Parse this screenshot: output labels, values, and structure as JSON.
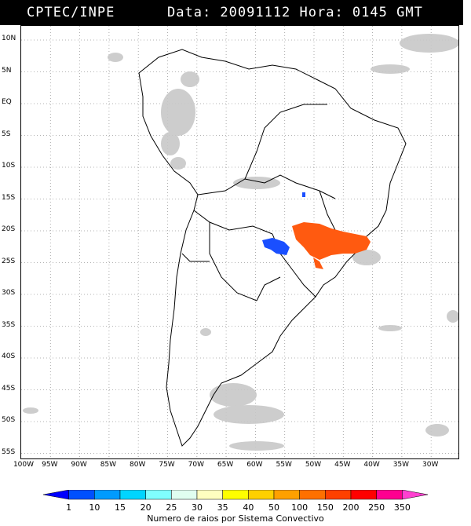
{
  "header": {
    "source": "CPTEC/INPE",
    "datetime": "Data: 20091112 Hora: 0145 GMT"
  },
  "latitude_labels": [
    "10N",
    "5N",
    "EQ",
    "5S",
    "10S",
    "15S",
    "20S",
    "25S",
    "30S",
    "35S",
    "40S",
    "45S",
    "50S",
    "55S"
  ],
  "longitude_labels": [
    "100W",
    "95W",
    "90W",
    "85W",
    "80W",
    "75W",
    "70W",
    "65W",
    "60W",
    "55W",
    "50W",
    "45W",
    "40W",
    "35W",
    "30W"
  ],
  "legend": {
    "title": "Numero de raios por Sistema Convectivo",
    "values": [
      "1",
      "10",
      "15",
      "20",
      "25",
      "30",
      "35",
      "40",
      "50",
      "100",
      "150",
      "200",
      "250",
      "350"
    ],
    "colors": [
      "#0000ff",
      "#0050ff",
      "#009bff",
      "#00d5ff",
      "#80ffff",
      "#e0fff0",
      "#ffffc0",
      "#ffff00",
      "#ffd000",
      "#ffa000",
      "#ff7000",
      "#ff4000",
      "#ff0000",
      "#ff0090",
      "#ff40d0"
    ]
  },
  "map": {
    "land_outline_color": "#000000",
    "cloud_color": "#c8c8c8",
    "storm_low_color": "#1a4fff",
    "storm_high_color": "#ff5a10"
  }
}
